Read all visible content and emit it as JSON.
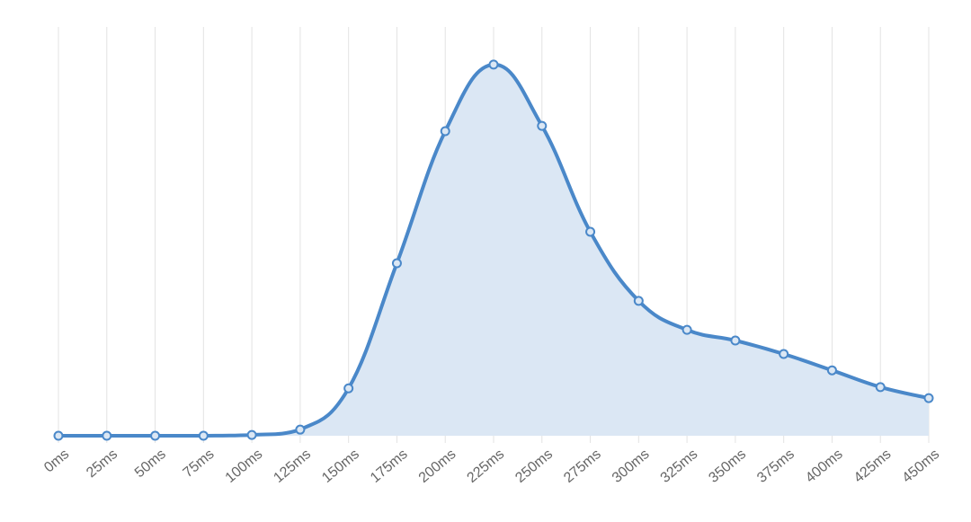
{
  "chart_data": {
    "type": "area",
    "categories": [
      "0ms",
      "25ms",
      "50ms",
      "75ms",
      "100ms",
      "125ms",
      "150ms",
      "175ms",
      "200ms",
      "225ms",
      "250ms",
      "275ms",
      "300ms",
      "325ms",
      "350ms",
      "375ms",
      "400ms",
      "425ms",
      "450ms"
    ],
    "values": [
      0,
      0,
      0,
      0,
      0.2,
      1.5,
      11.6,
      42.2,
      74.5,
      90.8,
      75.8,
      49.9,
      33.0,
      25.9,
      23.3,
      20.0,
      16.0,
      11.9,
      9.2
    ],
    "color": "#4a88c9",
    "fill_color": "#dbe7f4",
    "ylim": [
      0,
      100
    ],
    "grid": true
  }
}
